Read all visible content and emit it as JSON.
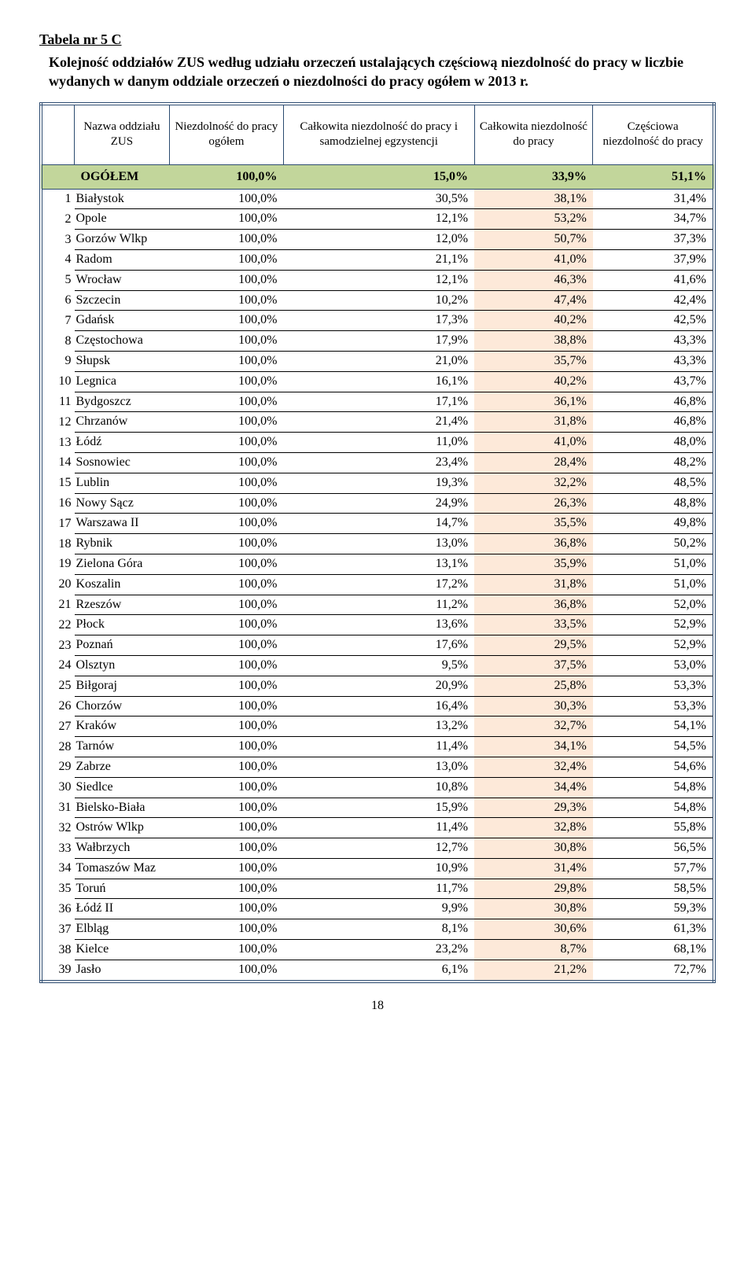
{
  "title": "Tabela nr 5 C",
  "subtitle": "Kolejność oddziałów ZUS według udziału orzeczeń ustalających częściową niezdolność do pracy w liczbie wydanych w danym oddziale orzeczeń o niezdolności do pracy ogółem w 2013 r.",
  "headers": {
    "c1": "Nazwa oddziału ZUS",
    "c2": "Niezdolność do pracy ogółem",
    "c3": "Całkowita niezdolność do pracy i samodzielnej egzystencji",
    "c4": "Całkowita niezdolność do pracy",
    "c5": "Częściowa niezdolność do pracy"
  },
  "total": {
    "label": "OGÓŁEM",
    "c2": "100,0%",
    "c3": "15,0%",
    "c4": "33,9%",
    "c5": "51,1%"
  },
  "rows": [
    {
      "n": "1",
      "name": "Białystok",
      "c2": "100,0%",
      "c3": "30,5%",
      "c4": "38,1%",
      "c5": "31,4%"
    },
    {
      "n": "2",
      "name": "Opole",
      "c2": "100,0%",
      "c3": "12,1%",
      "c4": "53,2%",
      "c5": "34,7%"
    },
    {
      "n": "3",
      "name": "Gorzów Wlkp",
      "c2": "100,0%",
      "c3": "12,0%",
      "c4": "50,7%",
      "c5": "37,3%"
    },
    {
      "n": "4",
      "name": "Radom",
      "c2": "100,0%",
      "c3": "21,1%",
      "c4": "41,0%",
      "c5": "37,9%"
    },
    {
      "n": "5",
      "name": "Wrocław",
      "c2": "100,0%",
      "c3": "12,1%",
      "c4": "46,3%",
      "c5": "41,6%"
    },
    {
      "n": "6",
      "name": "Szczecin",
      "c2": "100,0%",
      "c3": "10,2%",
      "c4": "47,4%",
      "c5": "42,4%"
    },
    {
      "n": "7",
      "name": "Gdańsk",
      "c2": "100,0%",
      "c3": "17,3%",
      "c4": "40,2%",
      "c5": "42,5%"
    },
    {
      "n": "8",
      "name": "Częstochowa",
      "c2": "100,0%",
      "c3": "17,9%",
      "c4": "38,8%",
      "c5": "43,3%"
    },
    {
      "n": "9",
      "name": "Słupsk",
      "c2": "100,0%",
      "c3": "21,0%",
      "c4": "35,7%",
      "c5": "43,3%"
    },
    {
      "n": "10",
      "name": "Legnica",
      "c2": "100,0%",
      "c3": "16,1%",
      "c4": "40,2%",
      "c5": "43,7%"
    },
    {
      "n": "11",
      "name": "Bydgoszcz",
      "c2": "100,0%",
      "c3": "17,1%",
      "c4": "36,1%",
      "c5": "46,8%"
    },
    {
      "n": "12",
      "name": "Chrzanów",
      "c2": "100,0%",
      "c3": "21,4%",
      "c4": "31,8%",
      "c5": "46,8%"
    },
    {
      "n": "13",
      "name": "Łódź",
      "c2": "100,0%",
      "c3": "11,0%",
      "c4": "41,0%",
      "c5": "48,0%"
    },
    {
      "n": "14",
      "name": "Sosnowiec",
      "c2": "100,0%",
      "c3": "23,4%",
      "c4": "28,4%",
      "c5": "48,2%"
    },
    {
      "n": "15",
      "name": "Lublin",
      "c2": "100,0%",
      "c3": "19,3%",
      "c4": "32,2%",
      "c5": "48,5%"
    },
    {
      "n": "16",
      "name": "Nowy Sącz",
      "c2": "100,0%",
      "c3": "24,9%",
      "c4": "26,3%",
      "c5": "48,8%"
    },
    {
      "n": "17",
      "name": "Warszawa II",
      "c2": "100,0%",
      "c3": "14,7%",
      "c4": "35,5%",
      "c5": "49,8%"
    },
    {
      "n": "18",
      "name": "Rybnik",
      "c2": "100,0%",
      "c3": "13,0%",
      "c4": "36,8%",
      "c5": "50,2%"
    },
    {
      "n": "19",
      "name": "Zielona Góra",
      "c2": "100,0%",
      "c3": "13,1%",
      "c4": "35,9%",
      "c5": "51,0%"
    },
    {
      "n": "20",
      "name": "Koszalin",
      "c2": "100,0%",
      "c3": "17,2%",
      "c4": "31,8%",
      "c5": "51,0%"
    },
    {
      "n": "21",
      "name": "Rzeszów",
      "c2": "100,0%",
      "c3": "11,2%",
      "c4": "36,8%",
      "c5": "52,0%"
    },
    {
      "n": "22",
      "name": "Płock",
      "c2": "100,0%",
      "c3": "13,6%",
      "c4": "33,5%",
      "c5": "52,9%"
    },
    {
      "n": "23",
      "name": "Poznań",
      "c2": "100,0%",
      "c3": "17,6%",
      "c4": "29,5%",
      "c5": "52,9%"
    },
    {
      "n": "24",
      "name": "Olsztyn",
      "c2": "100,0%",
      "c3": "9,5%",
      "c4": "37,5%",
      "c5": "53,0%"
    },
    {
      "n": "25",
      "name": "Biłgoraj",
      "c2": "100,0%",
      "c3": "20,9%",
      "c4": "25,8%",
      "c5": "53,3%"
    },
    {
      "n": "26",
      "name": "Chorzów",
      "c2": "100,0%",
      "c3": "16,4%",
      "c4": "30,3%",
      "c5": "53,3%"
    },
    {
      "n": "27",
      "name": "Kraków",
      "c2": "100,0%",
      "c3": "13,2%",
      "c4": "32,7%",
      "c5": "54,1%"
    },
    {
      "n": "28",
      "name": "Tarnów",
      "c2": "100,0%",
      "c3": "11,4%",
      "c4": "34,1%",
      "c5": "54,5%"
    },
    {
      "n": "29",
      "name": "Zabrze",
      "c2": "100,0%",
      "c3": "13,0%",
      "c4": "32,4%",
      "c5": "54,6%"
    },
    {
      "n": "30",
      "name": "Siedlce",
      "c2": "100,0%",
      "c3": "10,8%",
      "c4": "34,4%",
      "c5": "54,8%"
    },
    {
      "n": "31",
      "name": "Bielsko-Biała",
      "c2": "100,0%",
      "c3": "15,9%",
      "c4": "29,3%",
      "c5": "54,8%"
    },
    {
      "n": "32",
      "name": "Ostrów Wlkp",
      "c2": "100,0%",
      "c3": "11,4%",
      "c4": "32,8%",
      "c5": "55,8%"
    },
    {
      "n": "33",
      "name": "Wałbrzych",
      "c2": "100,0%",
      "c3": "12,7%",
      "c4": "30,8%",
      "c5": "56,5%"
    },
    {
      "n": "34",
      "name": "Tomaszów Maz",
      "c2": "100,0%",
      "c3": "10,9%",
      "c4": "31,4%",
      "c5": "57,7%"
    },
    {
      "n": "35",
      "name": "Toruń",
      "c2": "100,0%",
      "c3": "11,7%",
      "c4": "29,8%",
      "c5": "58,5%"
    },
    {
      "n": "36",
      "name": "Łódź II",
      "c2": "100,0%",
      "c3": "9,9%",
      "c4": "30,8%",
      "c5": "59,3%"
    },
    {
      "n": "37",
      "name": "Elbląg",
      "c2": "100,0%",
      "c3": "8,1%",
      "c4": "30,6%",
      "c5": "61,3%"
    },
    {
      "n": "38",
      "name": "Kielce",
      "c2": "100,0%",
      "c3": "23,2%",
      "c4": "8,7%",
      "c5": "68,1%"
    },
    {
      "n": "39",
      "name": "Jasło",
      "c2": "100,0%",
      "c3": "6,1%",
      "c4": "21,2%",
      "c5": "72,7%"
    }
  ],
  "page": "18",
  "colors": {
    "border": "#2b4a6f",
    "totalBg": "#c2d69b",
    "highlight": "#fde9d9"
  }
}
